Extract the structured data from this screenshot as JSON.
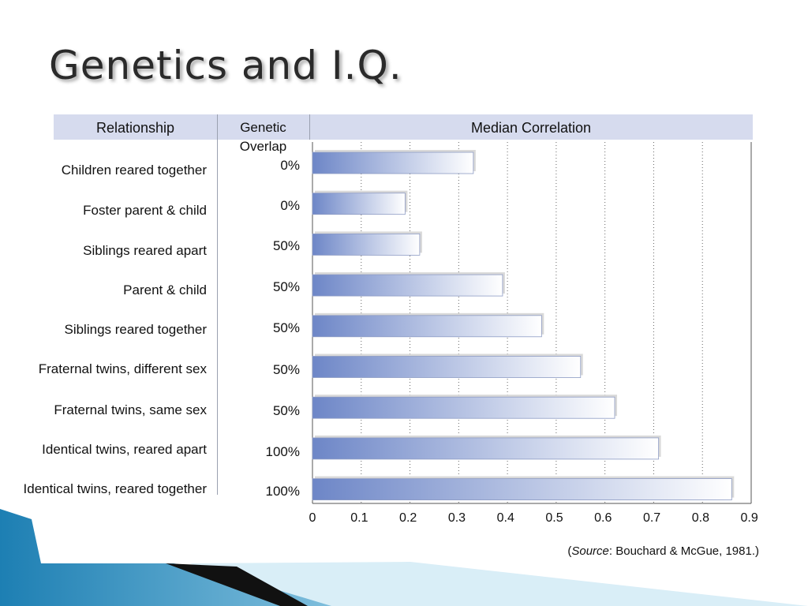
{
  "slide": {
    "title": "Genetics and I.Q."
  },
  "table": {
    "col_relationship": "Relationship",
    "col_overlap": "Genetic Overlap",
    "col_correlation": "Median Correlation"
  },
  "chart_data": {
    "type": "bar",
    "orientation": "horizontal",
    "title": "Median Correlation",
    "categories": [
      "Children reared together",
      "Foster parent & child",
      "Siblings reared apart",
      "Parent & child",
      "Siblings reared together",
      "Fraternal twins, different sex",
      "Fraternal twins, same sex",
      "Identical twins, reared apart",
      "Identical twins, reared together"
    ],
    "genetic_overlap": [
      "0%",
      "0%",
      "50%",
      "50%",
      "50%",
      "50%",
      "50%",
      "100%",
      "100%"
    ],
    "values": [
      0.33,
      0.19,
      0.22,
      0.39,
      0.47,
      0.55,
      0.62,
      0.71,
      0.86
    ],
    "xlim": [
      0,
      0.9
    ],
    "xticks": [
      "0",
      "0.1",
      "0.2",
      "0.3",
      "0.4",
      "0.5",
      "0.6",
      "0.7",
      "0.8",
      "0.9"
    ],
    "grid": true,
    "bar_gradient": [
      "#6d86c7",
      "#ffffff"
    ]
  },
  "footer": {
    "source_label": "Source",
    "source_rest": ": Bouchard & McGue, 1981.)",
    "source_open": "("
  }
}
